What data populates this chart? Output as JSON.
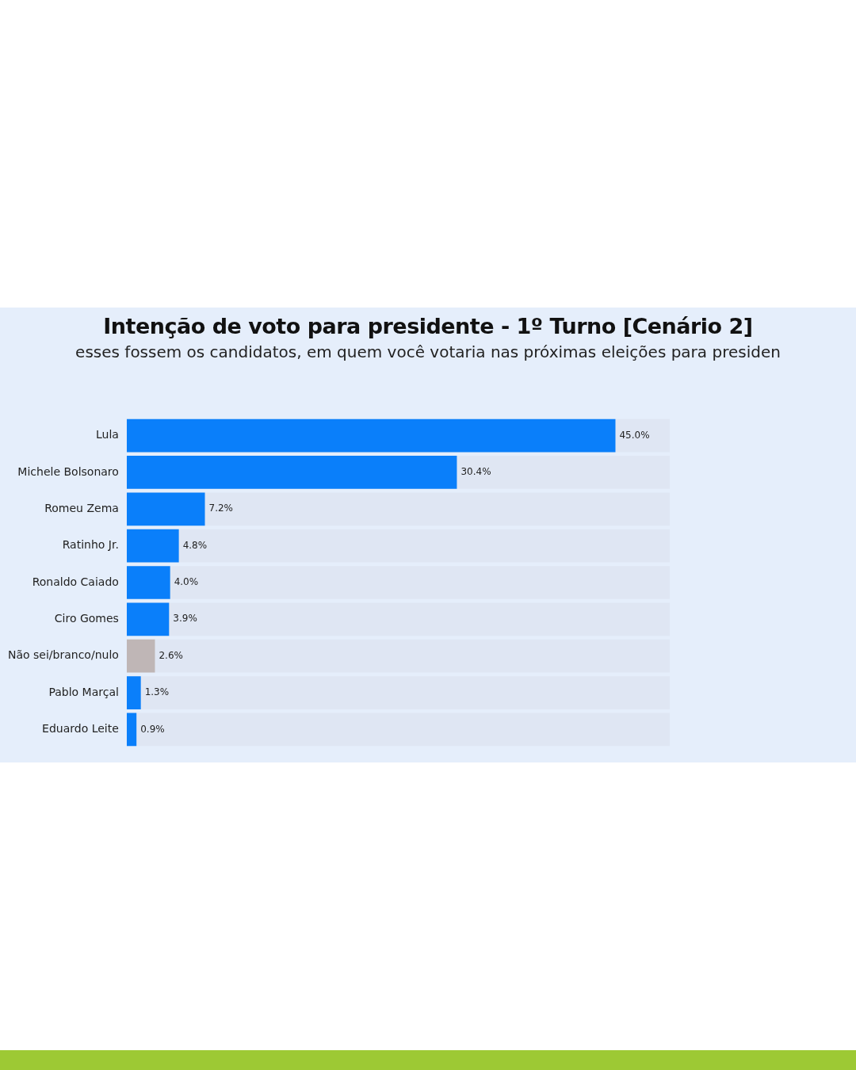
{
  "chart_data": {
    "type": "bar",
    "orientation": "horizontal",
    "title": "Intenção de voto para presidente - 1º Turno [Cenário 2]",
    "subtitle": "esses fossem os candidatos, em quem você votaria nas próximas eleições para presiden",
    "categories": [
      "Lula",
      "Michele Bolsonaro",
      "Romeu Zema",
      "Ratinho Jr.",
      "Ronaldo Caiado",
      "Ciro Gomes",
      "Não sei/branco/nulo",
      "Pablo Marçal",
      "Eduardo Leite"
    ],
    "values": [
      45.0,
      30.4,
      7.2,
      4.8,
      4.0,
      3.9,
      2.6,
      1.3,
      0.9
    ],
    "value_labels": [
      "45.0%",
      "30.4%",
      "7.2%",
      "4.8%",
      "4.0%",
      "3.9%",
      "2.6%",
      "1.3%",
      "0.9%"
    ],
    "colors": [
      "#0a7ffa",
      "#0a7ffa",
      "#0a7ffa",
      "#0a7ffa",
      "#0a7ffa",
      "#0a7ffa",
      "#bfb6b6",
      "#0a7ffa",
      "#0a7ffa"
    ],
    "xlim": [
      0,
      50
    ],
    "tick_labels": "y",
    "grid": false,
    "legend": false
  }
}
